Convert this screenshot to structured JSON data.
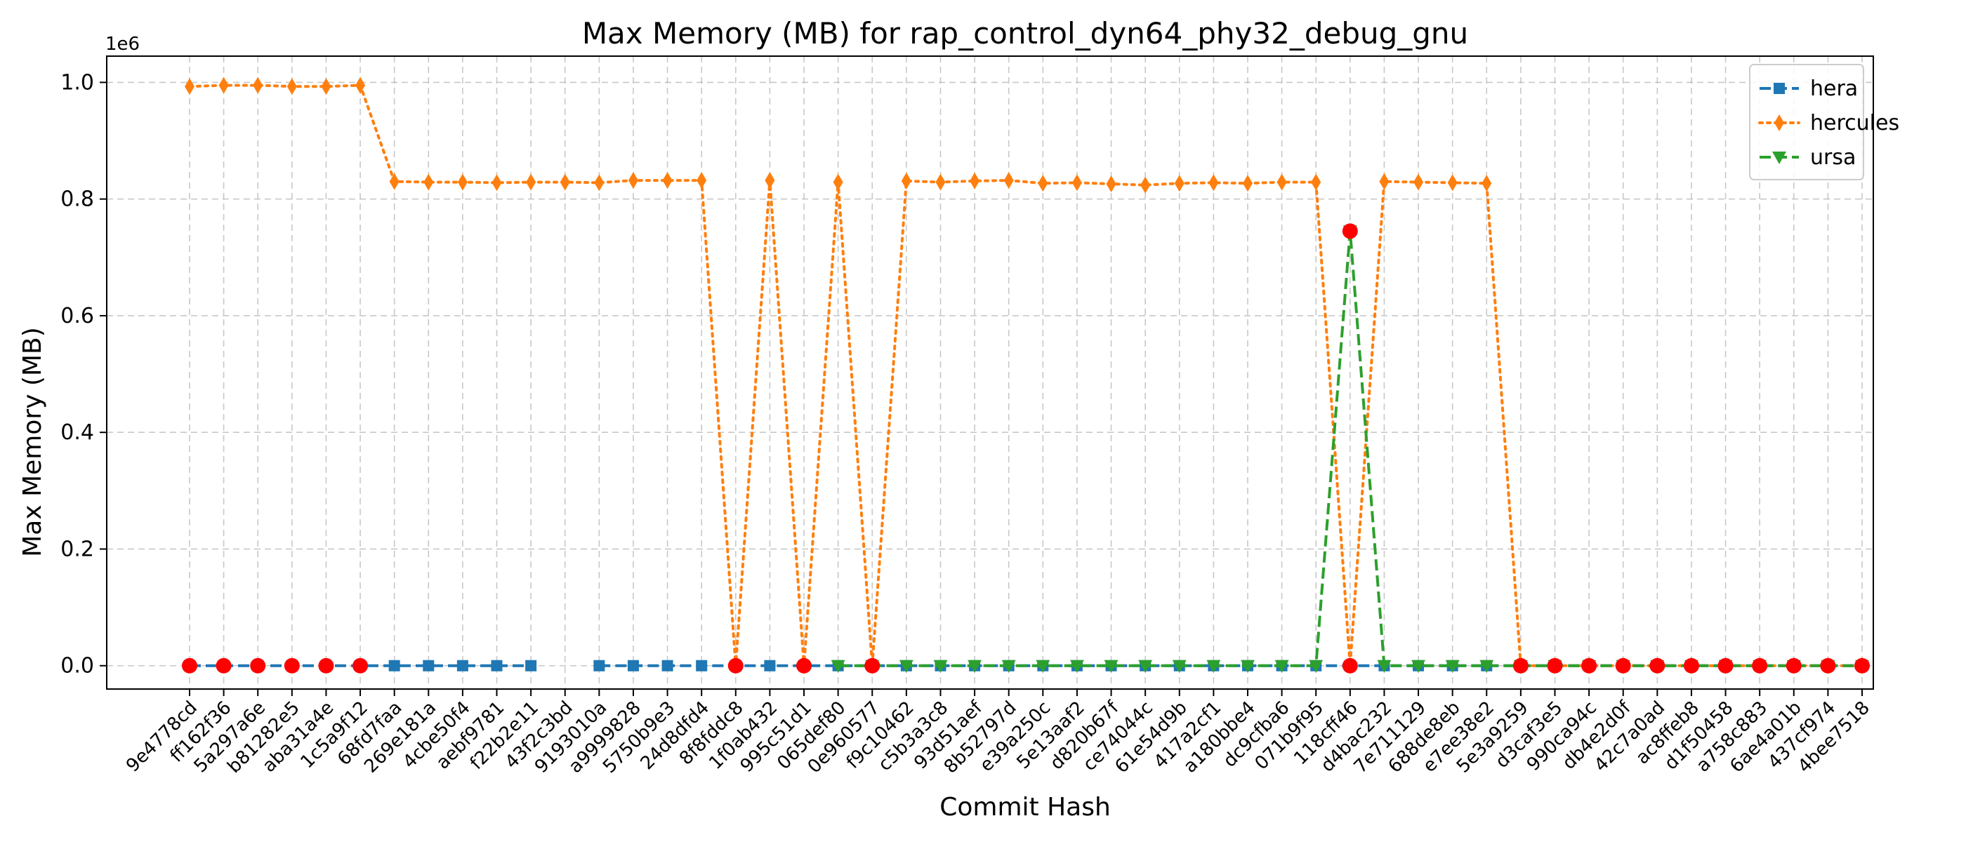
{
  "chart_data": {
    "type": "line",
    "title": "Max Memory (MB) for rap_control_dyn64_phy32_debug_gnu",
    "xlabel": "Commit Hash",
    "ylabel": "Max Memory (MB)",
    "y_offset_text": "1e6",
    "ylim": [
      -40000,
      1045000
    ],
    "yticks": [
      0,
      200000,
      400000,
      600000,
      800000,
      1000000
    ],
    "ytick_labels": [
      "0.0",
      "0.2",
      "0.4",
      "0.6",
      "0.8",
      "1.0"
    ],
    "grid": true,
    "legend_position": "top-right",
    "categories": [
      "9e4778cd",
      "ff162f36",
      "5a297a6e",
      "b81282e5",
      "aba31a4e",
      "1c5a9f12",
      "68fd7faa",
      "269e181a",
      "4cbe50f4",
      "aebf9781",
      "f22b2e11",
      "43f2c3bd",
      "9193010a",
      "a9999828",
      "5750b9e3",
      "24d8dfd4",
      "8f8fddc8",
      "1f0ab432",
      "995c51d1",
      "065def80",
      "0e960577",
      "f9c10462",
      "c5b3a3c8",
      "93d51aef",
      "8b52797d",
      "e39a250c",
      "5e13aaf2",
      "d820b67f",
      "ce74044c",
      "61e54d9b",
      "417a2cf1",
      "a180bbe4",
      "dc9cfba6",
      "071b9f95",
      "118cff46",
      "d4bac232",
      "7e711129",
      "688de8eb",
      "e7ee38e2",
      "5e3a9259",
      "d3caf3e5",
      "990ca94c",
      "db4e2d0f",
      "42c7a0ad",
      "ac8ffeb8",
      "d1f50458",
      "a758c883",
      "6ae4a01b",
      "437cf974",
      "4bee7518"
    ],
    "series": [
      {
        "name": "hera",
        "color": "#1f77b4",
        "line_style": "dashed",
        "marker": "square",
        "values": [
          0,
          0,
          0,
          0,
          0,
          0,
          0,
          0,
          0,
          0,
          0,
          null,
          0,
          0,
          0,
          0,
          0,
          0,
          0,
          0,
          0,
          0,
          0,
          0,
          0,
          0,
          0,
          0,
          0,
          0,
          0,
          0,
          0,
          0,
          0,
          0,
          0,
          0,
          0,
          0,
          0,
          0,
          0,
          0,
          0,
          0,
          0,
          0,
          0,
          0
        ]
      },
      {
        "name": "hercules",
        "color": "#ff7f0e",
        "line_style": "dotted",
        "marker": "thin-diamond",
        "values": [
          993000,
          995000,
          995000,
          993000,
          993000,
          995000,
          830000,
          829000,
          829000,
          828000,
          829000,
          829000,
          828000,
          832000,
          832000,
          832000,
          0,
          832000,
          0,
          829000,
          0,
          831000,
          829000,
          831000,
          832000,
          827000,
          828000,
          826000,
          824000,
          827000,
          828000,
          827000,
          829000,
          829000,
          0,
          830000,
          829000,
          828000,
          827000,
          0,
          0,
          0,
          0,
          0,
          0,
          0,
          0,
          0,
          0,
          0
        ]
      },
      {
        "name": "ursa",
        "color": "#2ca02c",
        "line_style": "dashed",
        "marker": "triangle-down",
        "values": [
          null,
          null,
          null,
          null,
          null,
          null,
          null,
          null,
          null,
          null,
          null,
          null,
          null,
          null,
          null,
          null,
          null,
          null,
          null,
          0,
          0,
          0,
          0,
          0,
          0,
          0,
          0,
          0,
          0,
          0,
          0,
          0,
          0,
          0,
          745000,
          0,
          0,
          0,
          0,
          0,
          0,
          0,
          0,
          0,
          0,
          0,
          0,
          0,
          0,
          0
        ]
      }
    ],
    "highlight_points": {
      "color": "#ff0000",
      "points": [
        {
          "x": "9e4778cd",
          "y": 0
        },
        {
          "x": "ff162f36",
          "y": 0
        },
        {
          "x": "5a297a6e",
          "y": 0
        },
        {
          "x": "b81282e5",
          "y": 0
        },
        {
          "x": "aba31a4e",
          "y": 0
        },
        {
          "x": "1c5a9f12",
          "y": 0
        },
        {
          "x": "8f8fddc8",
          "y": 0
        },
        {
          "x": "995c51d1",
          "y": 0
        },
        {
          "x": "0e960577",
          "y": 0
        },
        {
          "x": "118cff46",
          "y": 745000
        },
        {
          "x": "118cff46",
          "y": 0
        },
        {
          "x": "5e3a9259",
          "y": 0
        },
        {
          "x": "d3caf3e5",
          "y": 0
        },
        {
          "x": "990ca94c",
          "y": 0
        },
        {
          "x": "db4e2d0f",
          "y": 0
        },
        {
          "x": "42c7a0ad",
          "y": 0
        },
        {
          "x": "ac8ffeb8",
          "y": 0
        },
        {
          "x": "d1f50458",
          "y": 0
        },
        {
          "x": "a758c883",
          "y": 0
        },
        {
          "x": "6ae4a01b",
          "y": 0
        },
        {
          "x": "437cf974",
          "y": 0
        },
        {
          "x": "4bee7518",
          "y": 0
        }
      ]
    }
  }
}
